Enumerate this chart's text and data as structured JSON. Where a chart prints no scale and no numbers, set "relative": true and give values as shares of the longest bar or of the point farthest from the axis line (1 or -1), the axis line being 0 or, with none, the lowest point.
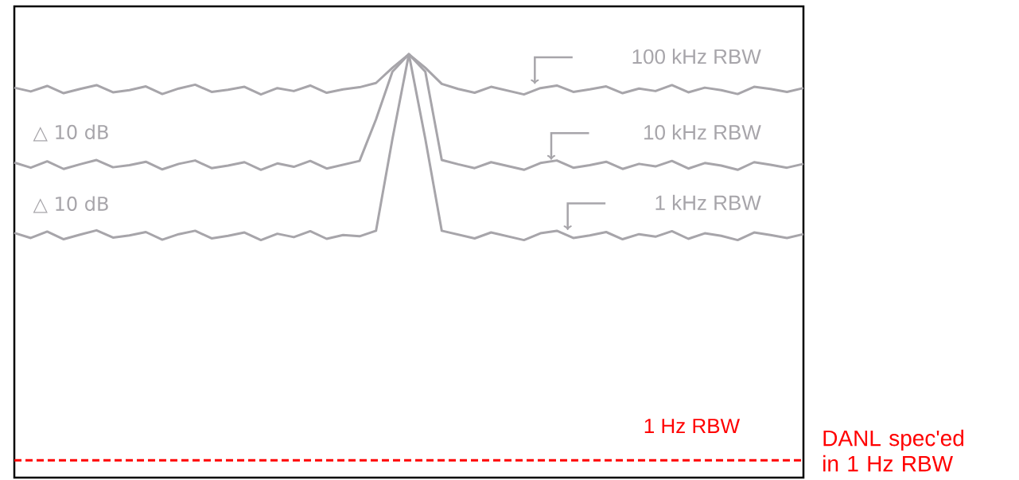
{
  "chart_data": {
    "type": "line",
    "relative": true,
    "line_style": "solid",
    "categories": [
      null,
      null,
      null,
      null,
      null,
      null,
      null,
      null,
      null,
      null,
      null,
      null,
      null,
      null,
      null,
      null,
      null,
      null,
      null,
      null,
      null,
      null,
      null,
      null,
      null,
      null,
      null,
      null,
      null,
      null,
      null,
      null,
      null,
      null,
      null,
      null,
      null,
      null,
      null,
      null,
      null,
      null,
      null,
      null,
      null,
      null,
      null,
      null,
      null
    ],
    "series": [
      {
        "name": "100 kHz RBW",
        "color": "#a7a5aa",
        "values": [
          0.921,
          0.912,
          0.925,
          0.908,
          0.918,
          0.927,
          0.91,
          0.915,
          0.924,
          0.906,
          0.919,
          0.928,
          0.911,
          0.916,
          0.923,
          0.905,
          0.92,
          0.913,
          0.926,
          0.909,
          0.917,
          0.922,
          0.932,
          0.968,
          1.0,
          0.968,
          0.93,
          0.918,
          0.909,
          0.923,
          0.914,
          0.905,
          0.92,
          0.926,
          0.911,
          0.917,
          0.924,
          0.908,
          0.919,
          0.913,
          0.927,
          0.91,
          0.921,
          0.915,
          0.906,
          0.923,
          0.918,
          0.911,
          0.92
        ]
      },
      {
        "name": "10 kHz RBW",
        "color": "#a7a5aa",
        "values": [
          0.744,
          0.732,
          0.747,
          0.729,
          0.74,
          0.75,
          0.733,
          0.738,
          0.746,
          0.728,
          0.741,
          0.749,
          0.731,
          0.737,
          0.745,
          0.727,
          0.742,
          0.734,
          0.748,
          0.73,
          0.739,
          0.748,
          0.846,
          0.959,
          1.0,
          0.959,
          0.75,
          0.74,
          0.731,
          0.745,
          0.736,
          0.727,
          0.743,
          0.749,
          0.732,
          0.738,
          0.746,
          0.729,
          0.741,
          0.735,
          0.748,
          0.73,
          0.743,
          0.737,
          0.727,
          0.745,
          0.739,
          0.732,
          0.741
        ]
      },
      {
        "name": "1 kHz RBW",
        "color": "#a7a5aa",
        "values": [
          0.578,
          0.566,
          0.581,
          0.563,
          0.574,
          0.584,
          0.567,
          0.572,
          0.58,
          0.562,
          0.575,
          0.583,
          0.565,
          0.571,
          0.579,
          0.561,
          0.576,
          0.568,
          0.582,
          0.564,
          0.573,
          0.57,
          0.583,
          0.8,
          1.0,
          0.8,
          0.583,
          0.574,
          0.565,
          0.579,
          0.57,
          0.561,
          0.577,
          0.583,
          0.566,
          0.572,
          0.58,
          0.563,
          0.575,
          0.569,
          0.582,
          0.564,
          0.577,
          0.571,
          0.561,
          0.579,
          0.573,
          0.566,
          0.575
        ]
      }
    ],
    "ref_lines": [
      {
        "axis": "y",
        "value": 0.041,
        "label": "1 Hz RBW",
        "color": "#ff0000",
        "line_style": "dashed"
      }
    ],
    "annotations": [
      "△ 10 dB",
      "△ 10 dB",
      "DANL spec'ed in 1 Hz RBW"
    ]
  }
}
